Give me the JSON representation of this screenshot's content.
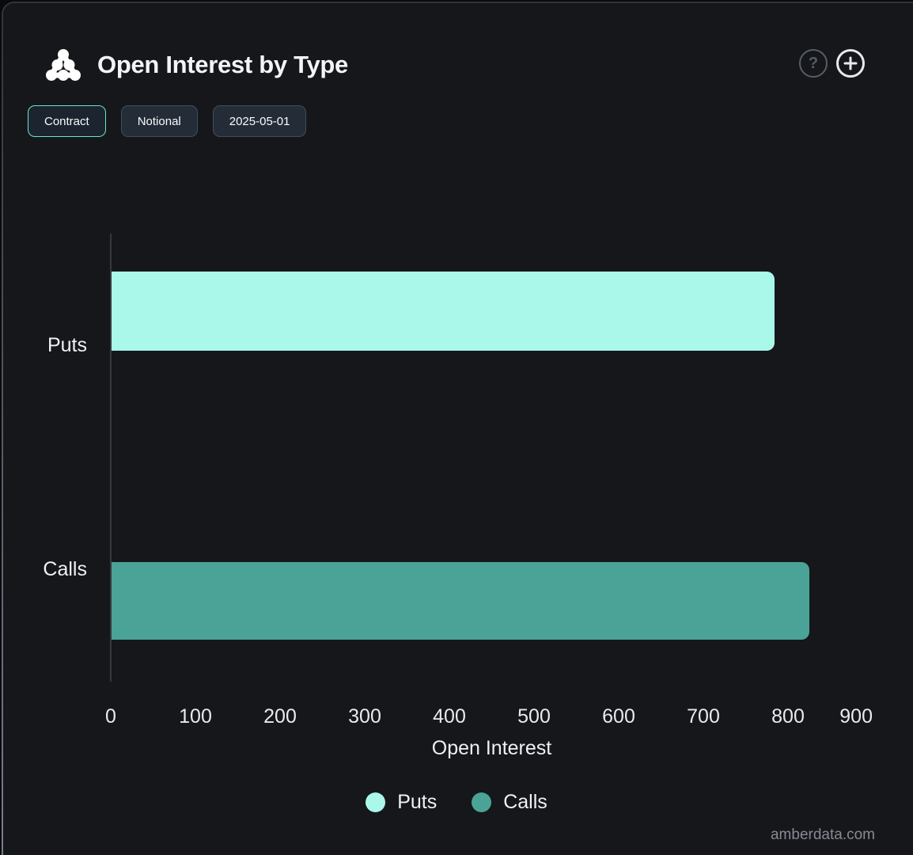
{
  "header": {
    "title": "Open Interest by Type",
    "help_label": "?"
  },
  "toolbar": {
    "buttons": [
      {
        "label": "Contract",
        "active": true
      },
      {
        "label": "Notional",
        "active": false
      },
      {
        "label": "2025-05-01",
        "active": false
      }
    ]
  },
  "chart_data": {
    "type": "bar",
    "orientation": "horizontal",
    "title": "Open Interest by Type",
    "categories": [
      "Puts",
      "Calls"
    ],
    "values": [
      783,
      824
    ],
    "colors": [
      "#a9f8e9",
      "#4aa396"
    ],
    "xlabel": "Open Interest",
    "ylabel": "",
    "xlim": [
      0,
      900
    ],
    "xticks": [
      0,
      100,
      200,
      300,
      400,
      500,
      600,
      700,
      800,
      900
    ],
    "grid": false,
    "legend_position": "bottom",
    "legend": [
      {
        "label": "Puts",
        "color": "#a9f8e9"
      },
      {
        "label": "Calls",
        "color": "#4aa396"
      }
    ]
  },
  "watermark": "amberdata.com"
}
